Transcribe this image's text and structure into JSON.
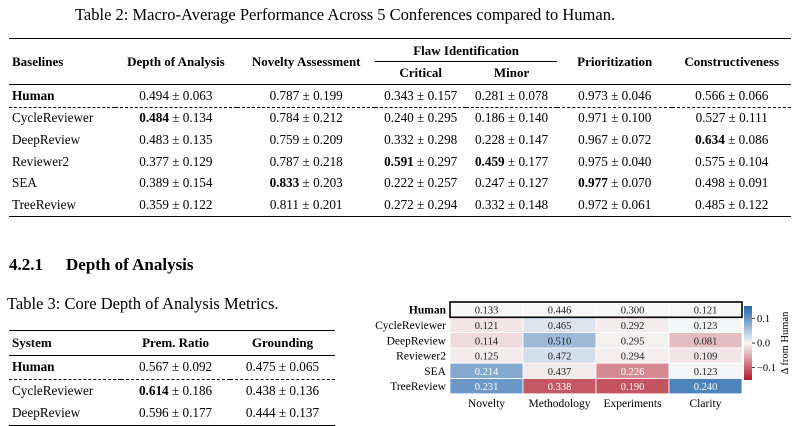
{
  "table2": {
    "caption": "Table 2: Macro-Average Performance Across 5 Conferences compared to Human.",
    "headers": {
      "baselines": "Baselines",
      "depth": "Depth of Analysis",
      "novelty": "Novelty Assessment",
      "flaw": "Flaw Identification",
      "critical": "Critical",
      "minor": "Minor",
      "prioritization": "Prioritization",
      "constructiveness": "Constructiveness"
    },
    "rows": [
      {
        "name": "Human",
        "cells": [
          {
            "v": "0.494",
            "s": "0.063"
          },
          {
            "v": "0.787",
            "s": "0.199"
          },
          {
            "v": "0.343",
            "s": "0.157"
          },
          {
            "v": "0.281",
            "s": "0.078"
          },
          {
            "v": "0.973",
            "s": "0.046"
          },
          {
            "v": "0.566",
            "s": "0.066"
          }
        ]
      },
      {
        "name": "CycleReviewer",
        "cells": [
          {
            "v": "0.484",
            "s": "0.134",
            "bold": true
          },
          {
            "v": "0.784",
            "s": "0.212"
          },
          {
            "v": "0.240",
            "s": "0.295"
          },
          {
            "v": "0.186",
            "s": "0.140"
          },
          {
            "v": "0.971",
            "s": "0.100"
          },
          {
            "v": "0.527",
            "s": "0.111"
          }
        ]
      },
      {
        "name": "DeepReview",
        "cells": [
          {
            "v": "0.483",
            "s": "0.135"
          },
          {
            "v": "0.759",
            "s": "0.209"
          },
          {
            "v": "0.332",
            "s": "0.298"
          },
          {
            "v": "0.228",
            "s": "0.147"
          },
          {
            "v": "0.967",
            "s": "0.072"
          },
          {
            "v": "0.634",
            "s": "0.086",
            "bold": true
          }
        ]
      },
      {
        "name": "Reviewer2",
        "cells": [
          {
            "v": "0.377",
            "s": "0.129"
          },
          {
            "v": "0.787",
            "s": "0.218"
          },
          {
            "v": "0.591",
            "s": "0.297",
            "bold": true
          },
          {
            "v": "0.459",
            "s": "0.177",
            "bold": true
          },
          {
            "v": "0.975",
            "s": "0.040"
          },
          {
            "v": "0.575",
            "s": "0.104"
          }
        ]
      },
      {
        "name": "SEA",
        "cells": [
          {
            "v": "0.389",
            "s": "0.154"
          },
          {
            "v": "0.833",
            "s": "0.203",
            "bold": true
          },
          {
            "v": "0.222",
            "s": "0.257"
          },
          {
            "v": "0.247",
            "s": "0.127"
          },
          {
            "v": "0.977",
            "s": "0.070",
            "bold": true
          },
          {
            "v": "0.498",
            "s": "0.091"
          }
        ]
      },
      {
        "name": "TreeReview",
        "cells": [
          {
            "v": "0.359",
            "s": "0.122"
          },
          {
            "v": "0.811",
            "s": "0.201"
          },
          {
            "v": "0.272",
            "s": "0.294"
          },
          {
            "v": "0.332",
            "s": "0.148"
          },
          {
            "v": "0.972",
            "s": "0.061"
          },
          {
            "v": "0.485",
            "s": "0.122"
          }
        ]
      }
    ]
  },
  "section": {
    "number": "4.2.1",
    "title": "Depth of Analysis"
  },
  "table3": {
    "caption": "Table 3: Core Depth of Analysis Metrics.",
    "headers": {
      "system": "System",
      "prem": "Prem. Ratio",
      "grounding": "Grounding"
    },
    "rows": [
      {
        "name": "Human",
        "cells": [
          {
            "v": "0.567",
            "s": "0.092"
          },
          {
            "v": "0.475",
            "s": "0.065"
          }
        ]
      },
      {
        "name": "CycleReviewer",
        "cells": [
          {
            "v": "0.614",
            "s": "0.186",
            "bold": true
          },
          {
            "v": "0.438",
            "s": "0.136"
          }
        ]
      },
      {
        "name": "DeepReview",
        "cells": [
          {
            "v": "0.596",
            "s": "0.177"
          },
          {
            "v": "0.444",
            "s": "0.137"
          }
        ]
      }
    ]
  },
  "chart_data": {
    "type": "heatmap",
    "rows": [
      "Human",
      "CycleReviewer",
      "DeepReview",
      "Reviewer2",
      "SEA",
      "TreeReview"
    ],
    "columns": [
      "Novelty",
      "Methodology",
      "Experiments",
      "Clarity"
    ],
    "values": [
      [
        0.133,
        0.446,
        0.3,
        0.121
      ],
      [
        0.121,
        0.465,
        0.292,
        0.123
      ],
      [
        0.114,
        0.51,
        0.295,
        0.081
      ],
      [
        0.125,
        0.472,
        0.294,
        0.109
      ],
      [
        0.214,
        0.437,
        0.226,
        0.123
      ],
      [
        0.231,
        0.338,
        0.19,
        0.24
      ]
    ],
    "colorbar_label": "Δ from Human",
    "colorbar_ticks": [
      "0.1",
      "0.0",
      "−0.1"
    ],
    "colorbar_range": [
      -0.15,
      0.15
    ],
    "highlight_row": "Human",
    "colors": {
      "positive": "#2166ac",
      "neutral": "#f7f7f7",
      "negative": "#b2182b"
    }
  }
}
